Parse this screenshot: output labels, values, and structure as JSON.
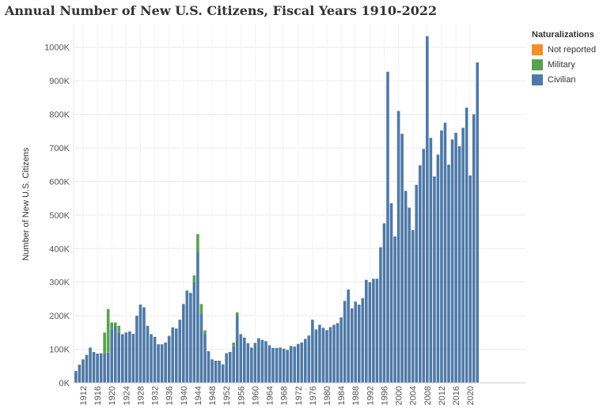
{
  "chart_data": {
    "type": "bar",
    "stacked": true,
    "title": "Annual Number of New U.S. Citizens, Fiscal Years 1910-2022",
    "xlabel": "",
    "ylabel": "Number of New U.S. Citizens",
    "ylim": [
      0,
      1070000
    ],
    "yticks": [
      0,
      100000,
      200000,
      300000,
      400000,
      500000,
      600000,
      700000,
      800000,
      900000,
      1000000
    ],
    "ytick_labels": [
      "0K",
      "100K",
      "200K",
      "300K",
      "400K",
      "500K",
      "600K",
      "700K",
      "800K",
      "900K",
      "1000K"
    ],
    "xticks": [
      "1912",
      "1916",
      "1920",
      "1924",
      "1928",
      "1932",
      "1936",
      "1940",
      "1944",
      "1948",
      "1952",
      "1956",
      "1960",
      "1964",
      "1968",
      "1972",
      "1976",
      "1980",
      "1984",
      "1988",
      "1992",
      "1996",
      "2000",
      "2004",
      "2008",
      "2012",
      "2016",
      "2020"
    ],
    "legend_title": "Naturalizations",
    "legend_position": "top-right",
    "grid": true,
    "categories": [
      1910,
      1911,
      1912,
      1913,
      1914,
      1915,
      1916,
      1917,
      1918,
      1919,
      1920,
      1921,
      1922,
      1923,
      1924,
      1925,
      1926,
      1927,
      1928,
      1929,
      1930,
      1931,
      1932,
      1933,
      1934,
      1935,
      1936,
      1937,
      1938,
      1939,
      1940,
      1941,
      1942,
      1943,
      1944,
      1945,
      1946,
      1947,
      1948,
      1949,
      1950,
      1951,
      1952,
      1953,
      1954,
      1955,
      1956,
      1957,
      1958,
      1959,
      1960,
      1961,
      1962,
      1963,
      1964,
      1965,
      1966,
      1967,
      1968,
      1969,
      1970,
      1971,
      1972,
      1973,
      1974,
      1975,
      1976,
      1977,
      1978,
      1979,
      1980,
      1981,
      1982,
      1983,
      1984,
      1985,
      1986,
      1987,
      1988,
      1989,
      1990,
      1991,
      1992,
      1993,
      1994,
      1995,
      1996,
      1997,
      1998,
      1999,
      2000,
      2001,
      2002,
      2003,
      2004,
      2005,
      2006,
      2007,
      2008,
      2009,
      2010,
      2011,
      2012,
      2013,
      2014,
      2015,
      2016,
      2017,
      2018,
      2019,
      2020,
      2021,
      2022
    ],
    "series": [
      {
        "name": "Civilian",
        "color": "#4e79a7",
        "values": [
          35000,
          54000,
          70000,
          83000,
          105000,
          92000,
          87000,
          88000,
          88000,
          90000,
          160000,
          170000,
          150000,
          145000,
          150000,
          153000,
          146000,
          200000,
          233000,
          225000,
          170000,
          145000,
          137000,
          115000,
          115000,
          120000,
          140000,
          165000,
          162000,
          188000,
          235000,
          275000,
          268000,
          300000,
          390000,
          205000,
          146000,
          94000,
          70000,
          66000,
          66000,
          55000,
          88000,
          92000,
          110000,
          200000,
          145000,
          135000,
          118000,
          105000,
          119000,
          133000,
          128000,
          124000,
          112000,
          104000,
          104000,
          105000,
          102000,
          98000,
          110000,
          108000,
          116000,
          120000,
          131000,
          141000,
          188000,
          159000,
          173000,
          164000,
          157000,
          166000,
          173000,
          178000,
          195000,
          244000,
          278000,
          222000,
          242000,
          233000,
          252000,
          307000,
          300000,
          310000,
          310000,
          404000,
          475000,
          927000,
          535000,
          436000,
          810000,
          742000,
          572000,
          522000,
          455000,
          590000,
          648000,
          697000,
          1033000,
          730000,
          615000,
          680000,
          752000,
          775000,
          650000,
          725000,
          745000,
          705000,
          760000,
          820000,
          618000,
          800000,
          955000
        ]
      },
      {
        "name": "Military",
        "color": "#59a14f",
        "values": [
          0,
          0,
          0,
          0,
          0,
          0,
          0,
          0,
          62000,
          130000,
          20000,
          10000,
          20000,
          0,
          0,
          0,
          0,
          0,
          0,
          0,
          0,
          0,
          0,
          0,
          0,
          0,
          0,
          0,
          0,
          0,
          0,
          0,
          0,
          20000,
          53000,
          30000,
          10000,
          0,
          0,
          0,
          0,
          0,
          0,
          0,
          10000,
          10000,
          0,
          0,
          0,
          0,
          0,
          0,
          0,
          0,
          0,
          0,
          0,
          0,
          0,
          0,
          0,
          0,
          0,
          0,
          0,
          0,
          0,
          0,
          0,
          0,
          0,
          0,
          0,
          0,
          0,
          0,
          0,
          0,
          0,
          0,
          0,
          0,
          0,
          0,
          0,
          0,
          0,
          0,
          0,
          0,
          0,
          0,
          0,
          0,
          0,
          0,
          0,
          0,
          0,
          0,
          0,
          0,
          0,
          0,
          0,
          0,
          0,
          0,
          0,
          0,
          0,
          0,
          0
        ]
      },
      {
        "name": "Not reported",
        "color": "#f28e2b",
        "values": [
          0,
          0,
          0,
          0,
          0,
          0,
          0,
          0,
          0,
          0,
          0,
          0,
          0,
          0,
          0,
          0,
          0,
          0,
          0,
          0,
          0,
          0,
          0,
          0,
          0,
          0,
          0,
          0,
          0,
          0,
          0,
          0,
          0,
          0,
          0,
          0,
          0,
          0,
          0,
          0,
          0,
          0,
          0,
          0,
          0,
          0,
          0,
          0,
          0,
          0,
          0,
          0,
          0,
          0,
          0,
          0,
          0,
          0,
          0,
          0,
          0,
          0,
          0,
          0,
          0,
          0,
          0,
          0,
          0,
          0,
          0,
          0,
          0,
          0,
          0,
          0,
          0,
          0,
          0,
          0,
          0,
          0,
          0,
          0,
          0,
          0,
          0,
          0,
          0,
          0,
          0,
          0,
          0,
          0,
          0,
          0,
          0,
          0,
          0,
          0,
          0,
          0,
          0,
          0,
          0,
          0,
          0,
          0,
          0,
          0,
          0,
          0,
          0
        ]
      }
    ]
  },
  "legend": {
    "title": "Naturalizations",
    "items": [
      {
        "label": "Not reported",
        "color": "#f28e2b"
      },
      {
        "label": "Military",
        "color": "#59a14f"
      },
      {
        "label": "Civilian",
        "color": "#4e79a7"
      }
    ]
  }
}
